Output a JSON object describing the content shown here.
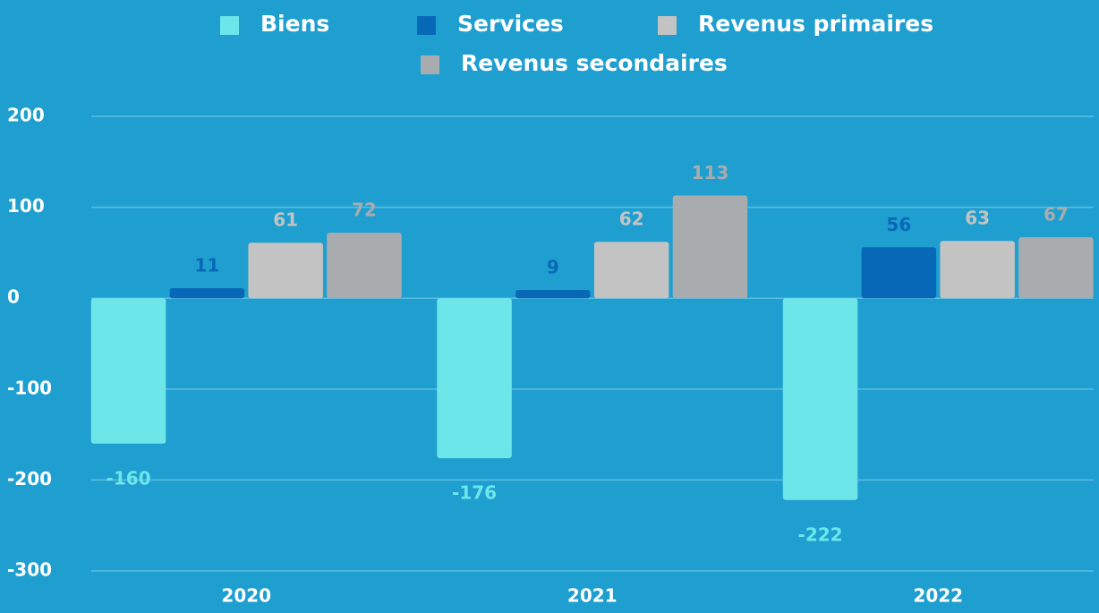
{
  "chart_data": {
    "type": "bar",
    "categories": [
      "2020",
      "2021",
      "2022"
    ],
    "series": [
      {
        "name": "Biens",
        "color": "#6de6ea",
        "values": [
          -160,
          -176,
          -222
        ]
      },
      {
        "name": "Services",
        "color": "#0868b8",
        "values": [
          11,
          9,
          56
        ]
      },
      {
        "name": "Revenus primaires",
        "color": "#c3c3c3",
        "values": [
          61,
          62,
          63
        ]
      },
      {
        "name": "Revenus secondaires",
        "color": "#a9acaf",
        "values": [
          72,
          113,
          67
        ]
      }
    ],
    "ylim": [
      -300,
      200
    ],
    "yticks": [
      -300,
      -200,
      -100,
      0,
      100,
      200
    ],
    "grid": true
  }
}
